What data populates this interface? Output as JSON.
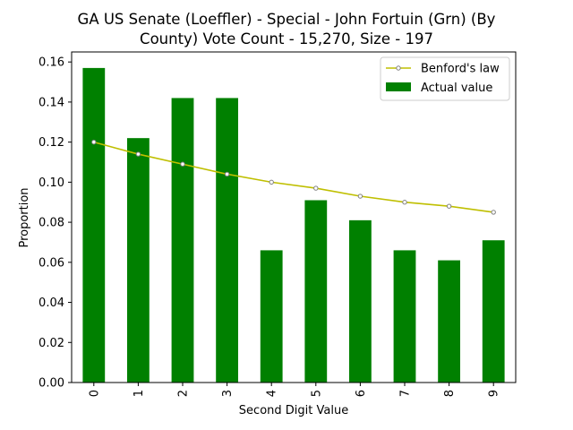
{
  "chart_data": {
    "type": "bar",
    "title_line1": "GA US Senate (Loeffler) - Special - John Fortuin (Grn) (By",
    "title_line2": "County) Vote Count - 15,270, Size - 197",
    "xlabel": "Second Digit Value",
    "ylabel": "Proportion",
    "categories": [
      "0",
      "1",
      "2",
      "3",
      "4",
      "5",
      "6",
      "7",
      "8",
      "9"
    ],
    "ylim": [
      0,
      0.165
    ],
    "yticks": [
      "0.00",
      "0.02",
      "0.04",
      "0.06",
      "0.08",
      "0.10",
      "0.12",
      "0.14",
      "0.16"
    ],
    "ytick_values": [
      0,
      0.02,
      0.04,
      0.06,
      0.08,
      0.1,
      0.12,
      0.14,
      0.16
    ],
    "series": [
      {
        "name": "Actual value",
        "kind": "bar",
        "color": "#008000",
        "values": [
          0.157,
          0.122,
          0.142,
          0.142,
          0.066,
          0.091,
          0.081,
          0.066,
          0.061,
          0.071
        ]
      },
      {
        "name": "Benford's law",
        "kind": "line",
        "color": "#bfbf00",
        "marker_edge": "#808080",
        "values": [
          0.12,
          0.114,
          0.109,
          0.104,
          0.1,
          0.097,
          0.093,
          0.09,
          0.088,
          0.085
        ]
      }
    ],
    "legend_position": "top-right",
    "grid": false
  }
}
